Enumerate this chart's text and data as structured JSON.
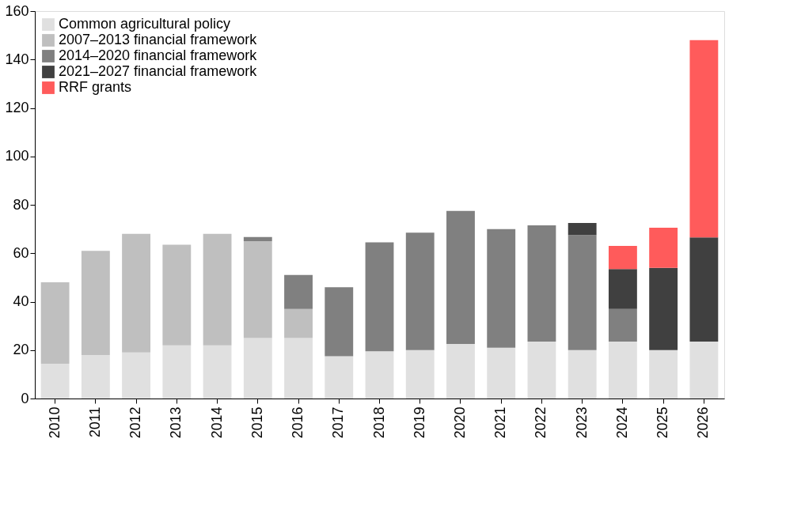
{
  "chart_data": {
    "type": "bar",
    "stacked": true,
    "categories": [
      "2010",
      "2011",
      "2012",
      "2013",
      "2014",
      "2015",
      "2016",
      "2017",
      "2018",
      "2019",
      "2020",
      "2021",
      "2022",
      "2023",
      "2024",
      "2025",
      "2026"
    ],
    "series": [
      {
        "name": "Common agricultural policy",
        "color": "#e0e0e0",
        "values": [
          14.4,
          18,
          19,
          22,
          22,
          25,
          25,
          17.5,
          19.5,
          20,
          22.5,
          21,
          23.5,
          20,
          23.5,
          20,
          23.5
        ]
      },
      {
        "name": "2007–2013 financial framework",
        "color": "#bfbfbf",
        "values": [
          33.6,
          43,
          49,
          41.5,
          46,
          40,
          12,
          null,
          null,
          null,
          null,
          null,
          null,
          null,
          null,
          null,
          null
        ]
      },
      {
        "name": "2014–2020 financial framework",
        "color": "#808080",
        "values": [
          null,
          null,
          null,
          null,
          null,
          1.7,
          14,
          28.5,
          45,
          48.5,
          55,
          49,
          48,
          47.5,
          13.5,
          null,
          null
        ]
      },
      {
        "name": "2021–2027 financial framework",
        "color": "#404040",
        "values": [
          null,
          null,
          null,
          null,
          null,
          null,
          null,
          null,
          null,
          null,
          null,
          null,
          null,
          5,
          16.5,
          34,
          43
        ]
      },
      {
        "name": "RRF grants",
        "color": "#ff5b5b",
        "values": [
          null,
          null,
          null,
          null,
          null,
          null,
          null,
          null,
          null,
          null,
          null,
          null,
          null,
          null,
          9.5,
          16.5,
          81.5
        ]
      }
    ],
    "ylim": [
      0,
      160
    ],
    "yticks": [
      0,
      20,
      40,
      60,
      80,
      100,
      120,
      140,
      160
    ],
    "grid": false,
    "legend": "top left"
  }
}
